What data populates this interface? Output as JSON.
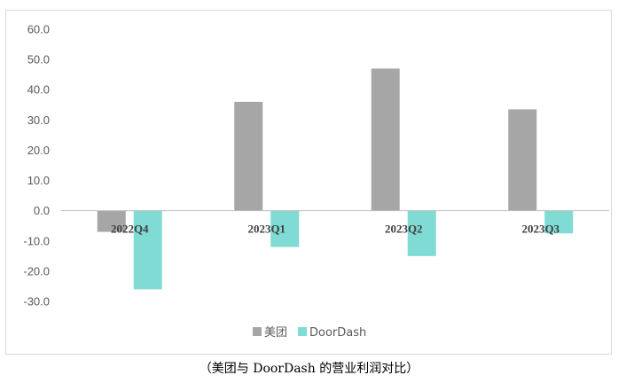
{
  "chart_data": {
    "type": "bar",
    "categories": [
      "2022Q4",
      "2023Q1",
      "2023Q2",
      "2023Q3"
    ],
    "series": [
      {
        "name": "美团",
        "color": "#a6a6a6",
        "values": [
          -7.0,
          36.0,
          47.0,
          33.5
        ]
      },
      {
        "name": "DoorDash",
        "color": "#7fdbd4",
        "values": [
          -26.0,
          -12.0,
          -15.0,
          -7.5
        ]
      }
    ],
    "yticks": [
      "60.0",
      "50.0",
      "40.0",
      "30.0",
      "20.0",
      "10.0",
      "0.0",
      "-10.0",
      "-20.0",
      "-30.0"
    ],
    "ylim": [
      -30,
      60
    ],
    "grid": false,
    "legend_position": "bottom"
  },
  "caption": "（美团与 DoorDash 的营业利润对比）"
}
